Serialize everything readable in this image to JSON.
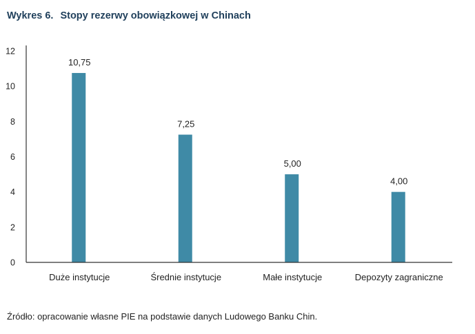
{
  "title": {
    "number": "Wykres 6.",
    "text": "Stopy rezerwy obowiązkowej w Chinach"
  },
  "source": "Źródło: opracowanie własne PIE na podstawie danych Ludowego Banku Chin.",
  "chart_data": {
    "type": "bar",
    "title": "Stopy rezerwy obowiązkowej w Chinach",
    "xlabel": "",
    "ylabel": "",
    "categories": [
      "Duże instytucje",
      "Średnie instytucje",
      "Małe instytucje",
      "Depozyty zagraniczne"
    ],
    "values": [
      10.75,
      7.25,
      5.0,
      4.0
    ],
    "value_labels": [
      "10,75",
      "7,25",
      "5,00",
      "4,00"
    ],
    "ylim": [
      0,
      12
    ],
    "yticks": [
      0,
      2,
      4,
      6,
      8,
      10,
      12
    ],
    "grid": false,
    "legend": "none",
    "bar_color": "#3f8aa6",
    "axis_color": "#333333"
  }
}
